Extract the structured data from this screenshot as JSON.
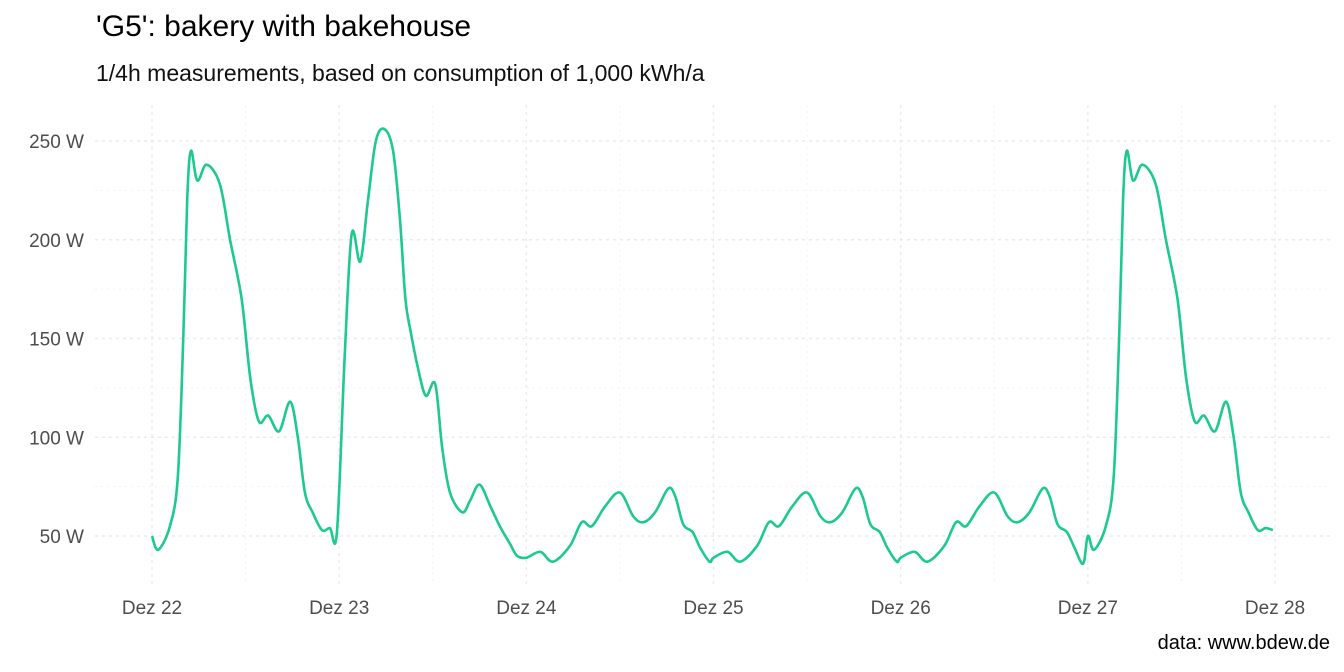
{
  "chart_data": {
    "type": "line",
    "title": "'G5': bakery with bakehouse",
    "subtitle": "1/4h measurements, based on consumption of 1,000 kWh/a",
    "caption": "data: www.bdew.de",
    "xlabel": "",
    "ylabel": "",
    "x_unit": "day of December",
    "xlim": [
      21.7,
      28.2
    ],
    "ylim": [
      28,
      268
    ],
    "x_ticks": [
      22,
      23,
      24,
      25,
      26,
      27,
      28
    ],
    "x_tick_labels": [
      "Dez 22",
      "Dez 23",
      "Dez 24",
      "Dez 25",
      "Dez 26",
      "Dez 27",
      "Dez 28"
    ],
    "y_ticks": [
      50,
      100,
      150,
      200,
      250
    ],
    "y_tick_labels": [
      "50 W",
      "100 W",
      "150 W",
      "200 W",
      "250 W"
    ],
    "grid": true,
    "legend": "none",
    "color": "#1DC98F",
    "series": [
      {
        "x": [
          22.0,
          22.033,
          22.096,
          22.138,
          22.167,
          22.188,
          22.208,
          22.242,
          22.292,
          22.363,
          22.417,
          22.479,
          22.525,
          22.571,
          22.621,
          22.679,
          22.738,
          22.779,
          22.817,
          22.858,
          22.908,
          22.95,
          22.988,
          23.029,
          23.067,
          23.113,
          23.154,
          23.196,
          23.242,
          23.288,
          23.325,
          23.354,
          23.383,
          23.421,
          23.463,
          23.513,
          23.55,
          23.592,
          23.658,
          23.7,
          23.75,
          23.808,
          23.858,
          23.913,
          23.95,
          24.0,
          24.075,
          24.142,
          24.233,
          24.296,
          24.35,
          24.421,
          24.5,
          24.571,
          24.625,
          24.688,
          24.758,
          24.796,
          24.838,
          24.888,
          24.929,
          24.979,
          25.0,
          25.075,
          25.142,
          25.233,
          25.296,
          25.35,
          25.421,
          25.5,
          25.571,
          25.625,
          25.688,
          25.758,
          25.796,
          25.838,
          25.888,
          25.929,
          25.979,
          26.0,
          26.075,
          26.142,
          26.233,
          26.296,
          26.35,
          26.421,
          26.5,
          26.571,
          26.625,
          26.688,
          26.758,
          26.796,
          26.838,
          26.888,
          26.929,
          26.975,
          27.0,
          27.033,
          27.096,
          27.138,
          27.167,
          27.188,
          27.208,
          27.242,
          27.292,
          27.363,
          27.417,
          27.479,
          27.525,
          27.571,
          27.621,
          27.679,
          27.738,
          27.779,
          27.817,
          27.858,
          27.908,
          27.95,
          27.988
        ],
        "y": [
          50,
          43,
          55,
          80,
          150,
          220,
          245,
          230,
          238,
          228,
          200,
          170,
          130,
          108,
          111,
          103,
          118,
          100,
          72,
          62,
          53,
          54,
          52,
          140,
          203,
          189,
          220,
          250,
          256,
          245,
          210,
          170,
          153,
          135,
          121,
          127,
          95,
          72,
          62,
          68,
          76,
          65,
          55,
          46,
          40,
          39,
          42,
          37,
          45,
          57,
          55,
          65,
          72,
          60,
          57,
          62,
          74,
          70,
          56,
          52,
          44,
          37,
          39,
          42,
          37,
          45,
          57,
          55,
          65,
          72,
          60,
          57,
          62,
          74,
          70,
          56,
          52,
          44,
          37,
          39,
          42,
          37,
          45,
          57,
          55,
          65,
          72,
          60,
          57,
          62,
          74,
          70,
          56,
          52,
          44,
          36,
          50,
          43,
          55,
          80,
          150,
          220,
          245,
          230,
          238,
          228,
          200,
          170,
          130,
          108,
          111,
          103,
          118,
          100,
          72,
          62,
          53,
          54,
          53
        ]
      }
    ]
  }
}
